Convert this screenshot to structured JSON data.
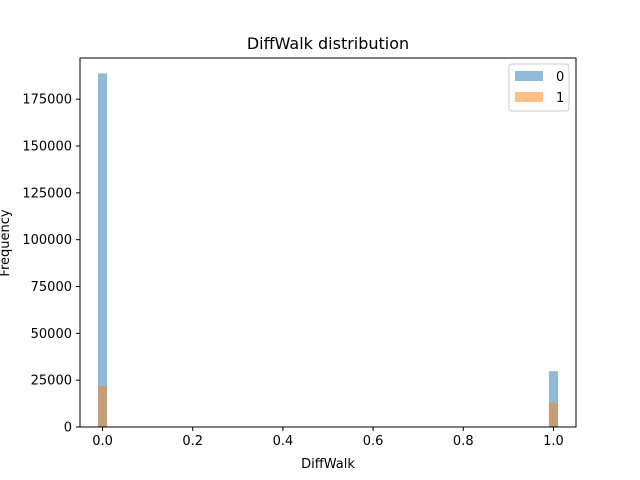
{
  "chart_data": {
    "type": "bar",
    "title": "DiffWalk distribution",
    "xlabel": "DiffWalk",
    "ylabel": "Frequency",
    "xlim": [
      -0.05,
      1.05
    ],
    "ylim": [
      0,
      197000
    ],
    "x_ticks": [
      0.0,
      0.2,
      0.4,
      0.6,
      0.8,
      1.0
    ],
    "x_tick_labels": [
      "0.0",
      "0.2",
      "0.4",
      "0.6",
      "0.8",
      "1.0"
    ],
    "y_ticks": [
      0,
      25000,
      50000,
      75000,
      100000,
      125000,
      150000,
      175000
    ],
    "y_tick_labels": [
      "0",
      "25000",
      "50000",
      "75000",
      "100000",
      "125000",
      "150000",
      "175000"
    ],
    "bin_width": 0.02,
    "series": [
      {
        "name": "0",
        "color": "#1f77b4",
        "opacity": 0.5,
        "bins": [
          {
            "x": 0.0,
            "value": 188800
          },
          {
            "x": 1.0,
            "value": 29800
          }
        ]
      },
      {
        "name": "1",
        "color": "#ff7f0e",
        "opacity": 0.5,
        "bins": [
          {
            "x": 0.0,
            "value": 22000
          },
          {
            "x": 1.0,
            "value": 13000
          }
        ]
      }
    ],
    "legend": {
      "position": "top-right"
    },
    "grid": false
  }
}
